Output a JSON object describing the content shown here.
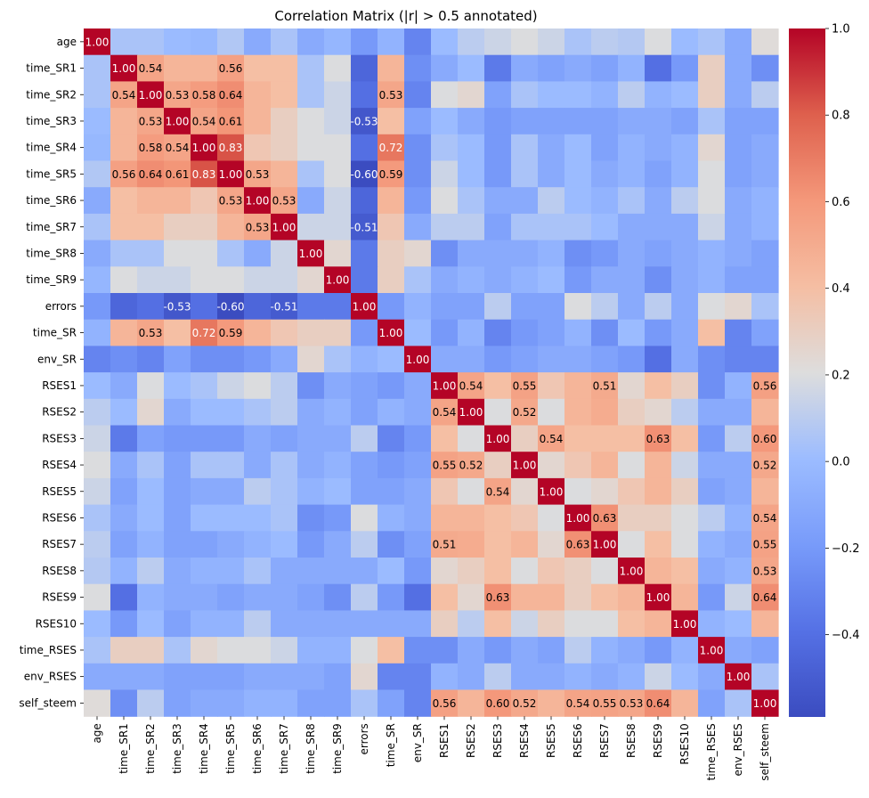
{
  "chart_data": {
    "type": "heatmap",
    "title": "Correlation Matrix (|r| > 0.5 annotated)",
    "xlabel": "",
    "ylabel": "",
    "labels": [
      "age",
      "time_SR1",
      "time_SR2",
      "time_SR3",
      "time_SR4",
      "time_SR5",
      "time_SR6",
      "time_SR7",
      "time_SR8",
      "time_SR9",
      "errors",
      "time_SR",
      "env_SR",
      "RSES1",
      "RSES2",
      "RSES3",
      "RSES4",
      "RSES5",
      "RSES6",
      "RSES7",
      "RSES8",
      "RSES9",
      "RSES10",
      "time_RSES",
      "env_RSES",
      "self_steem"
    ],
    "colormap": "coolwarm",
    "vmin": -0.59,
    "vmax": 1.0,
    "colorbar_ticks": [
      -0.4,
      -0.2,
      0.0,
      0.2,
      0.4,
      0.6,
      0.8,
      1.0
    ],
    "colorbar_tick_labels": [
      "−0.4",
      "−0.2",
      "0.0",
      "0.2",
      "0.4",
      "0.6",
      "0.8",
      "1.0"
    ],
    "annotation_threshold": 0.5,
    "annotation_format": "2f",
    "matrix": [
      [
        1.0,
        0.05,
        0.05,
        0.0,
        -0.02,
        0.07,
        -0.1,
        0.05,
        -0.1,
        -0.03,
        -0.2,
        -0.05,
        -0.3,
        0.0,
        0.1,
        0.15,
        0.2,
        0.15,
        0.05,
        0.1,
        0.08,
        0.2,
        0.0,
        0.05,
        -0.1,
        0.22
      ],
      [
        0.05,
        1.0,
        0.54,
        0.45,
        0.45,
        0.56,
        0.4,
        0.4,
        0.05,
        0.2,
        -0.45,
        0.45,
        -0.25,
        -0.1,
        0.0,
        -0.35,
        -0.1,
        -0.15,
        -0.1,
        -0.15,
        -0.05,
        -0.4,
        -0.2,
        0.3,
        -0.1,
        -0.25
      ],
      [
        0.05,
        0.54,
        1.0,
        0.53,
        0.58,
        0.64,
        0.45,
        0.4,
        0.05,
        0.15,
        -0.4,
        0.53,
        -0.3,
        0.2,
        0.25,
        -0.15,
        0.05,
        0.0,
        0.0,
        -0.05,
        0.1,
        -0.05,
        0.0,
        0.3,
        -0.1,
        0.1
      ],
      [
        0.0,
        0.45,
        0.53,
        1.0,
        0.54,
        0.61,
        0.45,
        0.3,
        0.2,
        0.15,
        -0.53,
        0.4,
        -0.15,
        0.0,
        -0.1,
        -0.2,
        -0.15,
        -0.15,
        -0.15,
        -0.15,
        -0.1,
        -0.1,
        -0.15,
        0.05,
        -0.15,
        -0.15
      ],
      [
        -0.02,
        0.45,
        0.58,
        0.54,
        1.0,
        0.83,
        0.35,
        0.3,
        0.2,
        0.2,
        -0.4,
        0.72,
        -0.25,
        0.05,
        0.0,
        -0.2,
        0.05,
        -0.1,
        0.0,
        -0.15,
        -0.05,
        -0.1,
        -0.05,
        0.25,
        -0.15,
        -0.1
      ],
      [
        0.07,
        0.56,
        0.64,
        0.61,
        0.83,
        1.0,
        0.53,
        0.45,
        0.05,
        0.2,
        -0.6,
        0.59,
        -0.25,
        0.15,
        0.0,
        -0.2,
        0.05,
        -0.1,
        0.0,
        -0.1,
        -0.05,
        -0.15,
        -0.05,
        0.2,
        -0.15,
        -0.1
      ],
      [
        -0.1,
        0.4,
        0.45,
        0.45,
        0.35,
        0.53,
        1.0,
        0.53,
        -0.1,
        0.15,
        -0.45,
        0.45,
        -0.2,
        0.2,
        0.05,
        -0.1,
        -0.1,
        0.1,
        0.0,
        -0.05,
        0.05,
        -0.1,
        0.1,
        0.2,
        -0.1,
        -0.05
      ],
      [
        0.05,
        0.4,
        0.4,
        0.3,
        0.3,
        0.45,
        0.53,
        1.0,
        0.15,
        0.15,
        -0.51,
        0.35,
        -0.1,
        0.1,
        0.1,
        -0.15,
        0.05,
        0.05,
        0.05,
        0.0,
        -0.1,
        -0.1,
        -0.1,
        0.15,
        -0.1,
        -0.05
      ],
      [
        -0.1,
        0.05,
        0.05,
        0.2,
        0.2,
        0.05,
        -0.1,
        0.15,
        1.0,
        0.25,
        -0.35,
        0.3,
        0.25,
        -0.25,
        -0.1,
        -0.1,
        -0.1,
        -0.05,
        -0.25,
        -0.2,
        -0.1,
        -0.15,
        -0.1,
        -0.05,
        -0.1,
        -0.15
      ],
      [
        -0.03,
        0.2,
        0.15,
        0.15,
        0.2,
        0.2,
        0.15,
        0.15,
        0.25,
        1.0,
        -0.35,
        0.3,
        0.05,
        -0.1,
        -0.05,
        -0.1,
        -0.05,
        0.0,
        -0.2,
        -0.1,
        -0.1,
        -0.25,
        -0.1,
        -0.05,
        -0.15,
        -0.15
      ],
      [
        -0.2,
        -0.45,
        -0.4,
        -0.53,
        -0.4,
        -0.6,
        -0.45,
        -0.51,
        -0.35,
        -0.35,
        1.0,
        -0.2,
        -0.05,
        -0.15,
        -0.15,
        0.1,
        -0.15,
        -0.15,
        0.2,
        0.1,
        -0.1,
        0.1,
        -0.1,
        0.2,
        0.25,
        0.05
      ],
      [
        -0.05,
        0.45,
        0.53,
        0.4,
        0.72,
        0.59,
        0.45,
        0.35,
        0.3,
        0.3,
        -0.2,
        1.0,
        0.0,
        -0.2,
        -0.05,
        -0.3,
        -0.2,
        -0.15,
        -0.05,
        -0.25,
        0.0,
        -0.2,
        -0.1,
        0.4,
        -0.3,
        -0.15
      ],
      [
        -0.3,
        -0.25,
        -0.3,
        -0.15,
        -0.25,
        -0.25,
        -0.2,
        -0.1,
        0.25,
        0.05,
        -0.05,
        0.0,
        1.0,
        -0.1,
        -0.1,
        -0.2,
        -0.15,
        -0.1,
        -0.1,
        -0.15,
        -0.2,
        -0.4,
        -0.1,
        -0.25,
        -0.3,
        -0.3
      ],
      [
        0.0,
        -0.1,
        0.2,
        0.0,
        0.05,
        0.15,
        0.2,
        0.1,
        -0.25,
        -0.1,
        -0.15,
        -0.2,
        -0.1,
        1.0,
        0.54,
        0.4,
        0.55,
        0.35,
        0.45,
        0.51,
        0.25,
        0.4,
        0.3,
        -0.25,
        -0.05,
        0.56
      ],
      [
        0.1,
        0.0,
        0.25,
        -0.1,
        0.0,
        0.0,
        0.05,
        0.1,
        -0.1,
        -0.05,
        -0.15,
        -0.05,
        -0.1,
        0.54,
        1.0,
        0.2,
        0.52,
        0.2,
        0.45,
        0.5,
        0.3,
        0.25,
        0.1,
        -0.1,
        -0.1,
        0.45
      ],
      [
        0.15,
        -0.35,
        -0.15,
        -0.2,
        -0.2,
        -0.2,
        -0.1,
        -0.15,
        -0.1,
        -0.1,
        0.1,
        -0.3,
        -0.2,
        0.4,
        0.2,
        1.0,
        0.3,
        0.54,
        0.4,
        0.4,
        0.4,
        0.63,
        0.4,
        -0.2,
        0.1,
        0.6
      ],
      [
        0.2,
        -0.1,
        0.05,
        -0.15,
        0.05,
        0.05,
        -0.1,
        0.05,
        -0.1,
        -0.05,
        -0.15,
        -0.2,
        -0.15,
        0.55,
        0.52,
        0.3,
        1.0,
        0.25,
        0.35,
        0.45,
        0.2,
        0.45,
        0.15,
        -0.1,
        -0.1,
        0.52
      ],
      [
        0.15,
        -0.15,
        0.0,
        -0.15,
        -0.1,
        -0.1,
        0.1,
        0.05,
        -0.05,
        0.0,
        -0.15,
        -0.15,
        -0.1,
        0.35,
        0.2,
        0.54,
        0.25,
        1.0,
        0.2,
        0.25,
        0.35,
        0.45,
        0.3,
        -0.15,
        -0.1,
        0.45
      ],
      [
        0.05,
        -0.1,
        0.0,
        -0.15,
        0.0,
        0.0,
        0.0,
        0.05,
        -0.25,
        -0.2,
        0.2,
        -0.05,
        -0.1,
        0.45,
        0.45,
        0.4,
        0.35,
        0.2,
        1.0,
        0.63,
        0.3,
        0.3,
        0.2,
        0.1,
        -0.05,
        0.54
      ],
      [
        0.1,
        -0.15,
        -0.05,
        -0.15,
        -0.15,
        -0.1,
        -0.05,
        0.0,
        -0.2,
        -0.1,
        0.1,
        -0.25,
        -0.15,
        0.51,
        0.5,
        0.4,
        0.45,
        0.25,
        0.63,
        1.0,
        0.2,
        0.4,
        0.2,
        -0.05,
        -0.1,
        0.55
      ],
      [
        0.08,
        -0.05,
        0.1,
        -0.1,
        -0.05,
        -0.05,
        0.05,
        -0.1,
        -0.1,
        -0.1,
        -0.1,
        0.0,
        -0.2,
        0.25,
        0.3,
        0.4,
        0.2,
        0.35,
        0.3,
        0.2,
        1.0,
        0.45,
        0.4,
        -0.1,
        -0.05,
        0.53
      ],
      [
        0.2,
        -0.4,
        -0.05,
        -0.1,
        -0.1,
        -0.15,
        -0.1,
        -0.1,
        -0.15,
        -0.25,
        0.1,
        -0.2,
        -0.4,
        0.4,
        0.25,
        0.63,
        0.45,
        0.45,
        0.3,
        0.4,
        0.45,
        1.0,
        0.45,
        -0.2,
        0.15,
        0.64
      ],
      [
        0.0,
        -0.2,
        0.0,
        -0.15,
        -0.05,
        -0.05,
        0.1,
        -0.1,
        -0.1,
        -0.1,
        -0.1,
        -0.1,
        -0.1,
        0.3,
        0.1,
        0.4,
        0.15,
        0.3,
        0.2,
        0.2,
        0.4,
        0.45,
        1.0,
        -0.05,
        0.0,
        0.45
      ],
      [
        0.05,
        0.3,
        0.3,
        0.05,
        0.25,
        0.2,
        0.2,
        0.15,
        -0.05,
        -0.05,
        0.2,
        0.4,
        -0.25,
        -0.25,
        -0.1,
        -0.2,
        -0.1,
        -0.15,
        0.1,
        -0.05,
        -0.1,
        -0.2,
        -0.05,
        1.0,
        -0.1,
        -0.15
      ],
      [
        -0.1,
        -0.1,
        -0.1,
        -0.15,
        -0.15,
        -0.15,
        -0.1,
        -0.1,
        -0.1,
        -0.15,
        0.25,
        -0.3,
        -0.3,
        -0.05,
        -0.1,
        0.1,
        -0.1,
        -0.1,
        -0.05,
        -0.1,
        -0.05,
        0.15,
        0.0,
        -0.1,
        1.0,
        0.05
      ],
      [
        0.22,
        -0.25,
        0.1,
        -0.15,
        -0.1,
        -0.1,
        -0.05,
        -0.05,
        -0.15,
        -0.15,
        0.05,
        -0.15,
        -0.3,
        0.56,
        0.45,
        0.6,
        0.52,
        0.45,
        0.54,
        0.55,
        0.53,
        0.64,
        0.45,
        -0.15,
        0.05,
        1.0
      ]
    ]
  }
}
